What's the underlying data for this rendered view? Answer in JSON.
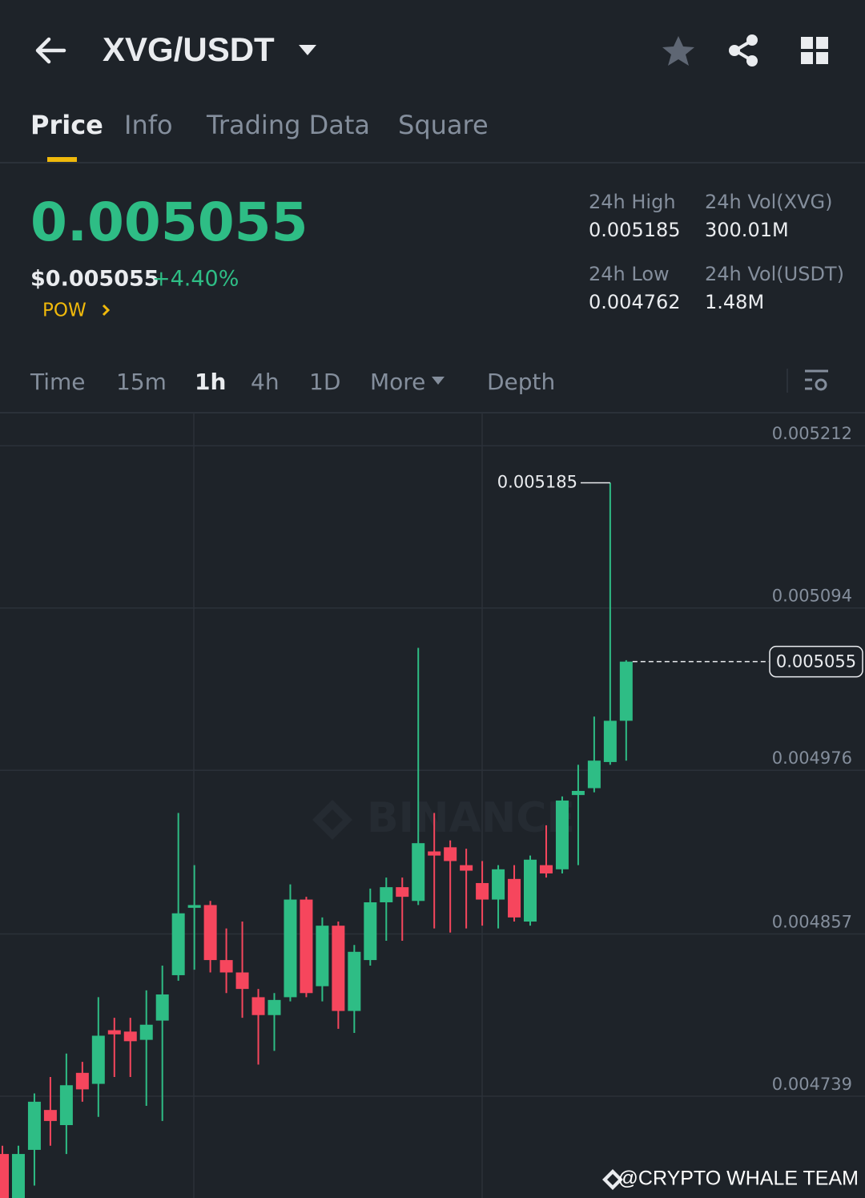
{
  "header": {
    "pair": "XVG/USDT"
  },
  "tabs": [
    "Price",
    "Info",
    "Trading Data",
    "Square"
  ],
  "active_tab": 0,
  "ticker": {
    "price": "0.005055",
    "price_usd": "$0.005055",
    "change": "+4.40%",
    "tag": "POW"
  },
  "stats": [
    {
      "label": "24h High",
      "value": "0.005185"
    },
    {
      "label": "24h Vol(XVG)",
      "value": "300.01M"
    },
    {
      "label": "24h Low",
      "value": "0.004762"
    },
    {
      "label": "24h Vol(USDT)",
      "value": "1.48M"
    }
  ],
  "intervals": [
    "Time",
    "15m",
    "1h",
    "4h",
    "1D",
    "More",
    "Depth"
  ],
  "active_interval": 2,
  "chart_data": {
    "type": "candlestick",
    "watermark": "BINANCE",
    "up_color": "#2ebd85",
    "down_color": "#f6465d",
    "ylim": [
      0.004665,
      0.005236
    ],
    "yticks": [
      0.004739,
      0.004857,
      0.004976,
      0.005094,
      0.005212
    ],
    "grid": true,
    "high_marker": 0.005185,
    "last_price": 0.005055,
    "open": [
      0.004697,
      0.004665,
      0.0047,
      0.004729,
      0.004718,
      0.004756,
      0.004748,
      0.004787,
      0.004786,
      0.00478,
      0.004794,
      0.004827,
      0.004876,
      0.004878,
      0.004838,
      0.004829,
      0.004811,
      0.004798,
      0.004811,
      0.004882,
      0.004819,
      0.004863,
      0.004801,
      0.004838,
      0.00488,
      0.004891,
      0.004881,
      0.004917,
      0.00492,
      0.004907,
      0.004894,
      0.004882,
      0.004897,
      0.004866,
      0.004907,
      0.004904,
      0.004958,
      0.004963,
      0.004982,
      0.005012
    ],
    "high": [
      0.004703,
      0.004703,
      0.004741,
      0.004753,
      0.00477,
      0.004764,
      0.004811,
      0.004796,
      0.004796,
      0.004816,
      0.004834,
      0.004945,
      0.004907,
      0.004881,
      0.004861,
      0.004866,
      0.004817,
      0.004814,
      0.004893,
      0.004884,
      0.004869,
      0.004866,
      0.004849,
      0.00489,
      0.004898,
      0.004898,
      0.005065,
      0.004945,
      0.004925,
      0.004919,
      0.00491,
      0.004907,
      0.004907,
      0.004914,
      0.004936,
      0.004957,
      0.00498,
      0.005015,
      0.005185,
      0.005056
    ],
    "low": [
      0.004665,
      0.004665,
      0.004674,
      0.004703,
      0.004697,
      0.004735,
      0.004724,
      0.004753,
      0.004753,
      0.004732,
      0.004721,
      0.004823,
      0.004831,
      0.004829,
      0.004814,
      0.004796,
      0.004762,
      0.004772,
      0.004808,
      0.004811,
      0.004808,
      0.004788,
      0.004785,
      0.004834,
      0.004852,
      0.004852,
      0.004878,
      0.004861,
      0.004858,
      0.004861,
      0.004863,
      0.004861,
      0.004866,
      0.004863,
      0.004898,
      0.004901,
      0.004907,
      0.00496,
      0.00498,
      0.004983
    ],
    "close": [
      0.004665,
      0.004697,
      0.004735,
      0.004721,
      0.004747,
      0.004744,
      0.004783,
      0.004784,
      0.004779,
      0.004791,
      0.004813,
      0.004872,
      0.004878,
      0.004838,
      0.004829,
      0.004817,
      0.004798,
      0.004809,
      0.004882,
      0.004814,
      0.004863,
      0.004801,
      0.004844,
      0.00488,
      0.004891,
      0.004884,
      0.004923,
      0.004914,
      0.00491,
      0.004903,
      0.004882,
      0.004904,
      0.004869,
      0.004911,
      0.004901,
      0.004954,
      0.004961,
      0.004983,
      0.005012,
      0.005055
    ]
  },
  "footer": {
    "credit": "@CRYPTO WHALE TEAM"
  }
}
